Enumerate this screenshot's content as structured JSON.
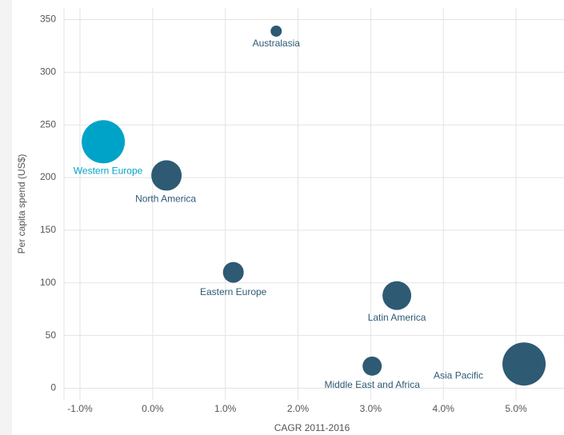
{
  "chart_data": {
    "type": "scatter",
    "xlabel": "CAGR 2011-2016",
    "ylabel": "Per capita spend (US$)",
    "series": [
      {
        "labels": [
          "Western Europe",
          "North America",
          "Australasia",
          "Eastern Europe",
          "Latin America",
          "Middle East and Africa",
          "Asia Pacific"
        ],
        "x": [
          -0.68,
          0.19,
          1.7,
          1.11,
          3.36,
          3.02,
          5.11
        ],
        "values": [
          234,
          202,
          339,
          110,
          88,
          21,
          23
        ],
        "sizes": [
          729,
          361,
          49,
          169,
          324,
          144,
          729
        ],
        "colors": [
          "#00a3c8",
          "#2e5a74",
          "#2e5a74",
          "#2e5a74",
          "#2e5a74",
          "#2e5a74",
          "#2e5a74"
        ]
      }
    ],
    "xlim": [
      -1.22,
      5.66
    ],
    "xticks": [
      {
        "value": -1,
        "label": "-1.0%"
      },
      {
        "value": 0,
        "label": "0.0%"
      },
      {
        "value": 1,
        "label": "1.0%"
      },
      {
        "value": 2,
        "label": "2.0%"
      },
      {
        "value": 3,
        "label": "3.0%"
      },
      {
        "value": 4,
        "label": "4.0%"
      },
      {
        "value": 5,
        "label": "5.0%"
      }
    ],
    "ylim": [
      -11,
      361
    ],
    "yticks": [
      0,
      50,
      100,
      150,
      200,
      250,
      300,
      350
    ],
    "grid": true
  }
}
